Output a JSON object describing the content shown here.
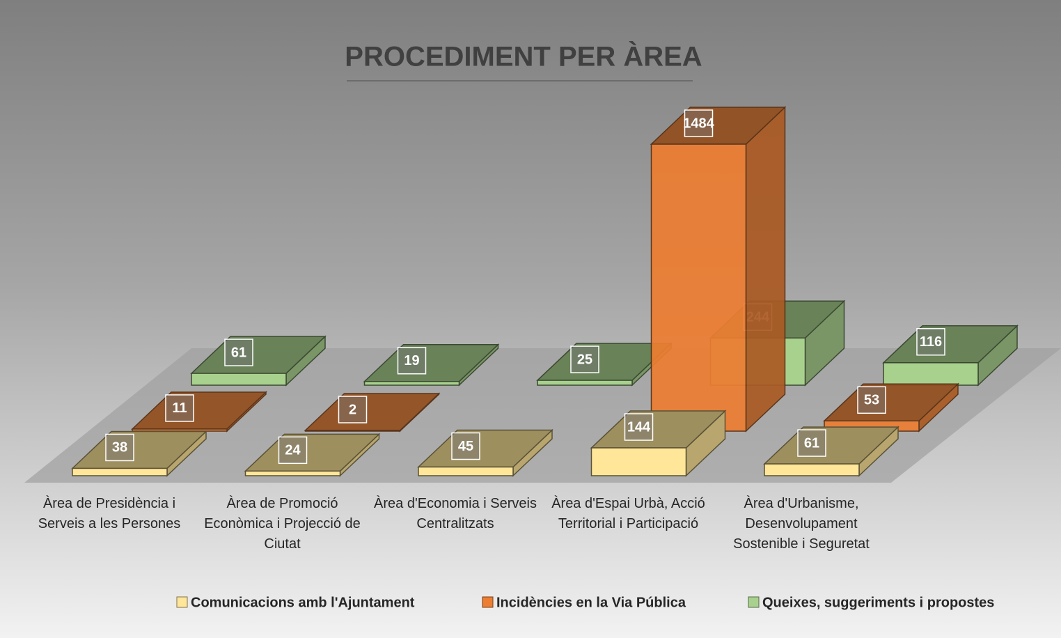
{
  "chart_data": {
    "type": "bar3d",
    "title": "PROCEDIMENT PER ÀREA",
    "categories": [
      "Àrea de Presidència i Serveis a les Persones",
      "Àrea de Promoció Econòmica i Projecció de Ciutat",
      "Àrea d'Economia i Serveis Centralitzats",
      "Àrea d'Espai Urbà, Acció Territorial i Participació",
      "Àrea d'Urbanisme, Desenvolupament Sostenible i Seguretat"
    ],
    "series": [
      {
        "name": "Comunicacions amb l'Ajuntament",
        "color": "#ffe699",
        "values": [
          38,
          24,
          45,
          144,
          61
        ]
      },
      {
        "name": "Incidències en la Via Pública",
        "color": "#ed7d31",
        "values": [
          11,
          2,
          null,
          1484,
          53
        ]
      },
      {
        "name": "Queixes, suggeriments i propostes",
        "color": "#a9d18e",
        "values": [
          61,
          19,
          25,
          244,
          116
        ]
      }
    ],
    "legend": "bottom"
  }
}
